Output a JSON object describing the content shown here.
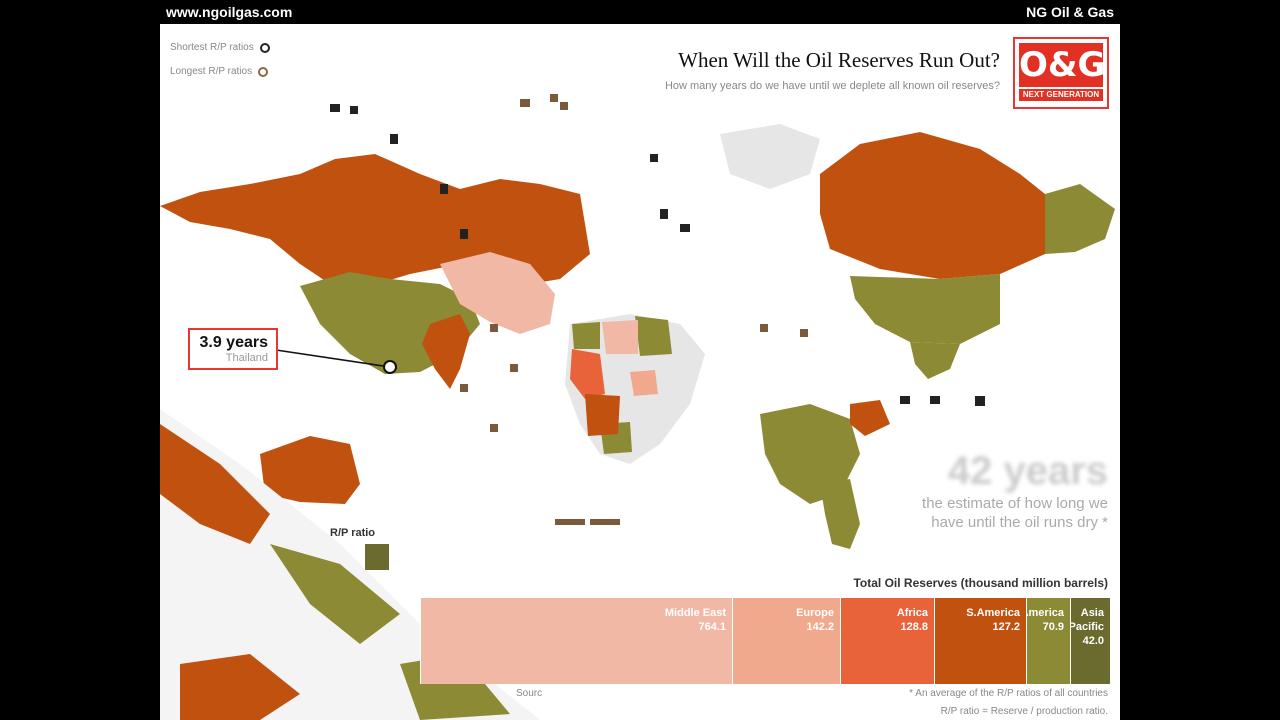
{
  "site": {
    "url": "www.ngoilgas.com",
    "brand": "NG Oil & Gas"
  },
  "legend": {
    "shortest": "Shortest R/P ratios",
    "longest": "Longest R/P ratios"
  },
  "logo": {
    "text": "O&G",
    "tagline": "NEXT GENERATION"
  },
  "header": {
    "title": "When Will the Oil Reserves Run Out?",
    "subtitle": "How many years do we have until we deplete all known oil reserves?"
  },
  "callout": {
    "value": "3.9 years",
    "country": "Thailand"
  },
  "estimate": {
    "value": "42 years",
    "line1": "the estimate of how long we",
    "line2": "have until the oil runs dry *"
  },
  "rp_ratio_label": "R/P ratio",
  "colors": {
    "dark_orange": "#c1510f",
    "olive": "#8c8a34",
    "orange": "#e8623a",
    "salmon": "#f0a98d",
    "light_pink": "#f2b8a6",
    "grey": "#e6e6e6"
  },
  "reserves": {
    "title": "Total Oil Reserves (thousand million barrels)",
    "regions": [
      {
        "name": "Asia Pacific",
        "value": "42.0"
      },
      {
        "name": "N.America",
        "value": "70.9"
      },
      {
        "name": "S.America",
        "value": "127.2"
      },
      {
        "name": "Africa",
        "value": "128.8"
      },
      {
        "name": "Europe",
        "value": "142.2"
      },
      {
        "name": "Middle East",
        "value": "764.1"
      }
    ],
    "source": "Sourc",
    "footnote": "* An average of the R/P ratios of all countries",
    "note": "R/P ratio = Reserve / production ratio."
  }
}
